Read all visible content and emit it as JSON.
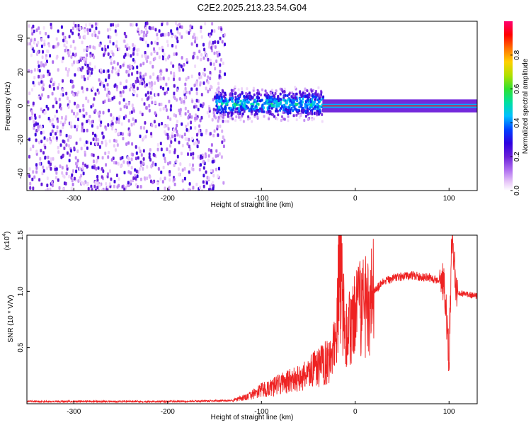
{
  "title": "C2E2.2025.213.23.54.G04",
  "chart_data": [
    {
      "type": "heatmap",
      "xlabel": "Height of straight line (km)",
      "ylabel": "Frequency (Hz)",
      "xlim": [
        -350,
        130
      ],
      "ylim": [
        -50,
        50
      ],
      "xticks": [
        -300,
        -200,
        -100,
        0,
        100
      ],
      "yticks": [
        -40,
        -20,
        0,
        20,
        40
      ],
      "colorbar": {
        "label": "Normalized spectral amplitude",
        "range": [
          0.0,
          1.0
        ],
        "ticks": [
          0.0,
          0.2,
          0.4,
          0.6,
          0.8
        ],
        "tick_labels": [
          "0.0",
          "0.2",
          "0.4",
          "0.6",
          "0.8"
        ],
        "colormap": [
          "#ffffff",
          "#e8c8f8",
          "#b070f0",
          "#6a1fd8",
          "#2e00e0",
          "#0040ff",
          "#00c0ff",
          "#00e0a0",
          "#30e030",
          "#b0e000",
          "#ffd000",
          "#ff7000",
          "#ff0000",
          "#ff0070"
        ]
      },
      "regions": [
        {
          "x_range": [
            -350,
            -150
          ],
          "frequency_range": [
            -50,
            50
          ],
          "description_level": 0.15
        },
        {
          "x_range": [
            -150,
            -35
          ],
          "frequency_range": [
            -12,
            10
          ],
          "ridge_center_hz": 2,
          "level": 0.5
        },
        {
          "x_range": [
            -35,
            130
          ],
          "frequency_range": [
            -3,
            3
          ],
          "ridge_center_hz": 0,
          "level": 0.95
        }
      ],
      "grid": false
    },
    {
      "type": "line",
      "xlabel": "Height of straight line (km)",
      "ylabel": "SNR (10 * V/V)",
      "multiplier_label": "(x10",
      "multiplier_exp": "4",
      "xlim": [
        -350,
        130
      ],
      "ylim": [
        0,
        1.5
      ],
      "xticks": [
        -300,
        -200,
        -100,
        0,
        100
      ],
      "yticks": [
        0.5,
        1.0,
        1.5
      ],
      "ytick_labels": [
        "0.5",
        "1.0",
        "1.5"
      ],
      "color": "#ee2222",
      "series": [
        {
          "points": [
            [
              -350,
              0.02
            ],
            [
              -300,
              0.02
            ],
            [
              -250,
              0.02
            ],
            [
              -200,
              0.02
            ],
            [
              -150,
              0.025
            ],
            [
              -130,
              0.03
            ],
            [
              -115,
              0.06
            ],
            [
              -100,
              0.12
            ],
            [
              -90,
              0.14
            ],
            [
              -80,
              0.18
            ],
            [
              -70,
              0.2
            ],
            [
              -60,
              0.22
            ],
            [
              -50,
              0.28
            ],
            [
              -40,
              0.32
            ],
            [
              -30,
              0.38
            ],
            [
              -20,
              0.5
            ],
            [
              -17,
              1.25
            ],
            [
              -10,
              0.6
            ],
            [
              0,
              0.75
            ],
            [
              10,
              0.9
            ],
            [
              20,
              1.0
            ],
            [
              30,
              1.08
            ],
            [
              40,
              1.12
            ],
            [
              50,
              1.13
            ],
            [
              60,
              1.14
            ],
            [
              70,
              1.13
            ],
            [
              80,
              1.12
            ],
            [
              90,
              1.1
            ],
            [
              95,
              1.08
            ],
            [
              100,
              0.4
            ],
            [
              103,
              1.5
            ],
            [
              108,
              1.0
            ],
            [
              115,
              0.98
            ],
            [
              120,
              0.97
            ],
            [
              130,
              0.96
            ]
          ]
        }
      ],
      "grid": false
    }
  ]
}
